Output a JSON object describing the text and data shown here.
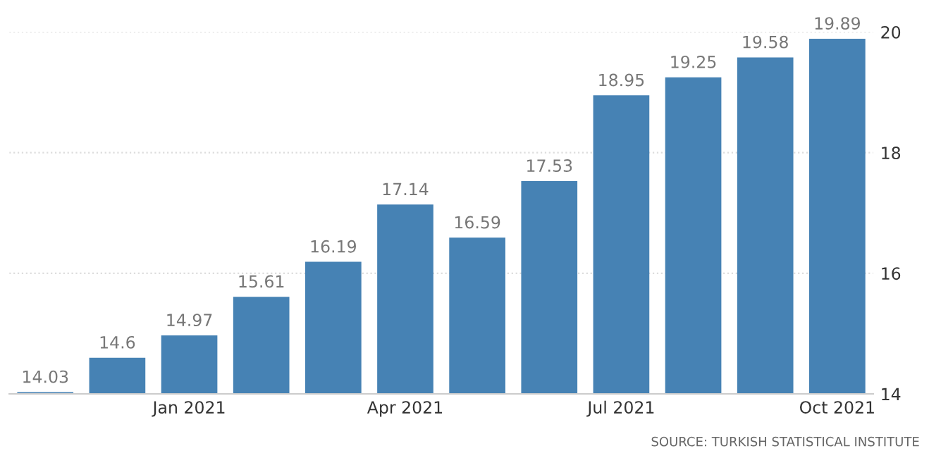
{
  "chart_data": {
    "type": "bar",
    "categories": [
      null,
      null,
      "Jan 2021",
      null,
      null,
      "Apr 2021",
      null,
      null,
      "Jul 2021",
      null,
      null,
      "Oct 2021"
    ],
    "values": [
      14.03,
      14.6,
      14.97,
      15.61,
      16.19,
      17.14,
      16.59,
      17.53,
      18.95,
      19.25,
      19.58,
      19.89
    ],
    "color": "#4682b4",
    "ylim": [
      14,
      20
    ],
    "yticks": [
      14,
      16,
      18,
      20
    ],
    "grid": "y",
    "data_labels": true,
    "annotations": [
      "SOURCE: TURKISH STATISTICAL INSTITUTE"
    ]
  }
}
